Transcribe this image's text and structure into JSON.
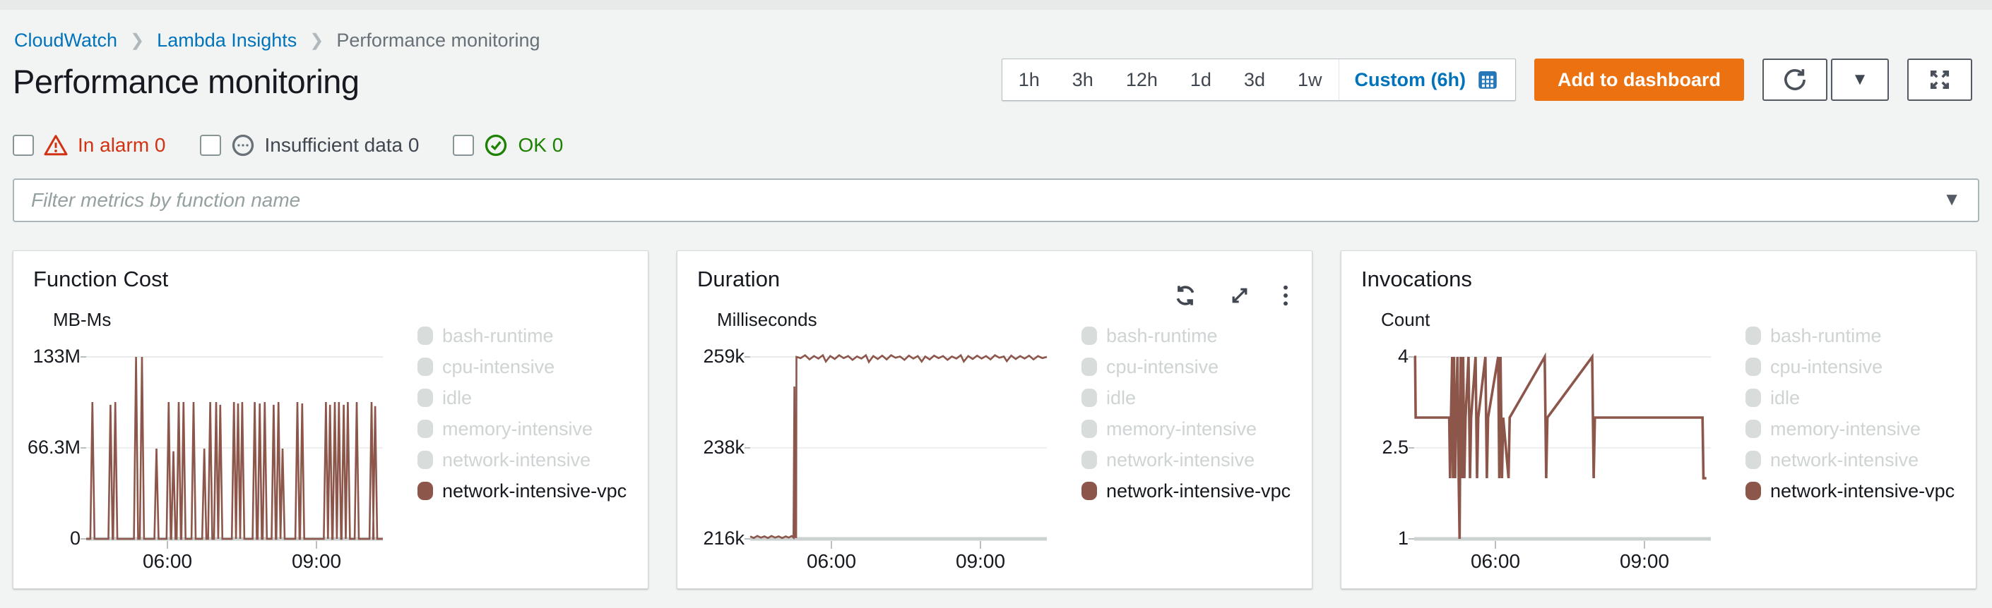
{
  "breadcrumb": {
    "items": [
      {
        "label": "CloudWatch"
      },
      {
        "label": "Lambda Insights"
      },
      {
        "label": "Performance monitoring"
      }
    ]
  },
  "page": {
    "title": "Performance monitoring"
  },
  "time_controls": {
    "ranges": [
      "1h",
      "3h",
      "12h",
      "1d",
      "3d",
      "1w"
    ],
    "custom_label": "Custom (6h)",
    "add_to_dashboard": "Add to dashboard",
    "icons": [
      "calendar-icon",
      "refresh-icon",
      "caret-down-icon",
      "fullscreen-icon"
    ]
  },
  "alarm_filters": {
    "in_alarm": "In alarm 0",
    "insufficient": "Insufficient data 0",
    "ok": "OK 0"
  },
  "filter": {
    "placeholder": "Filter metrics by function name"
  },
  "legend": {
    "position": "right",
    "items": [
      {
        "label": "bash-runtime",
        "active": false
      },
      {
        "label": "cpu-intensive",
        "active": false
      },
      {
        "label": "idle",
        "active": false
      },
      {
        "label": "memory-intensive",
        "active": false
      },
      {
        "label": "network-intensive",
        "active": false
      },
      {
        "label": "network-intensive-vpc",
        "active": true
      }
    ]
  },
  "colors": {
    "link_blue": "#0073bb",
    "alarm_red": "#d13212",
    "ok_green": "#1d8102",
    "accent_orange": "#ec7211",
    "series_brown": "#8c564b",
    "inactive_legend": "#d8dcdb",
    "page_bg": "#f2f3f3"
  },
  "chart_data": [
    {
      "type": "line",
      "title": "Function Cost",
      "unit": "MB-Ms",
      "yticks": [
        "133M",
        "66.3M",
        "0"
      ],
      "xticks": [
        "06:00",
        "09:00"
      ],
      "ylim": [
        0,
        133
      ],
      "grid": true,
      "legend_position": "right",
      "series": [
        {
          "name": "network-intensive-vpc",
          "color": "#8c564b",
          "baseline": 0,
          "half_width": 0.007,
          "spikes": [
            [
              0.021,
              100
            ],
            [
              0.082,
              98
            ],
            [
              0.098,
              100
            ],
            [
              0.168,
              133
            ],
            [
              0.188,
              133
            ],
            [
              0.237,
              66
            ],
            [
              0.278,
              100
            ],
            [
              0.294,
              64
            ],
            [
              0.312,
              100
            ],
            [
              0.328,
              100
            ],
            [
              0.362,
              100
            ],
            [
              0.398,
              66
            ],
            [
              0.418,
              100
            ],
            [
              0.438,
              100
            ],
            [
              0.452,
              98
            ],
            [
              0.498,
              100
            ],
            [
              0.512,
              99
            ],
            [
              0.526,
              100
            ],
            [
              0.568,
              100
            ],
            [
              0.585,
              99
            ],
            [
              0.602,
              100
            ],
            [
              0.632,
              98
            ],
            [
              0.648,
              100
            ],
            [
              0.662,
              66
            ],
            [
              0.712,
              100
            ],
            [
              0.728,
              99
            ],
            [
              0.808,
              100
            ],
            [
              0.822,
              98
            ],
            [
              0.838,
              100
            ],
            [
              0.852,
              100
            ],
            [
              0.868,
              98
            ],
            [
              0.882,
              100
            ],
            [
              0.912,
              100
            ],
            [
              0.962,
              100
            ],
            [
              0.974,
              97
            ]
          ]
        }
      ]
    },
    {
      "type": "line",
      "title": "Duration",
      "unit": "Milliseconds",
      "yticks": [
        "259k",
        "238k",
        "216k"
      ],
      "xticks": [
        "06:00",
        "09:00"
      ],
      "ylim": [
        216,
        259
      ],
      "grid": true,
      "legend_position": "right",
      "series": [
        {
          "name": "network-intensive-vpc",
          "color": "#8c564b",
          "points": [
            [
              0,
              216.6
            ],
            [
              0.012,
              216.2
            ],
            [
              0.024,
              216.7
            ],
            [
              0.036,
              216.3
            ],
            [
              0.048,
              216.6
            ],
            [
              0.06,
              216.2
            ],
            [
              0.072,
              216.7
            ],
            [
              0.084,
              216.3
            ],
            [
              0.096,
              216.6
            ],
            [
              0.108,
              216.2
            ],
            [
              0.12,
              216.6
            ],
            [
              0.13,
              216.3
            ],
            [
              0.14,
              216.7
            ],
            [
              0.146,
              216.3
            ],
            [
              0.149,
              252
            ],
            [
              0.151,
              216.4
            ],
            [
              0.155,
              216.4
            ],
            [
              0.156,
              259
            ],
            [
              0.17,
              258.7
            ],
            [
              0.185,
              259.4
            ],
            [
              0.2,
              258.4
            ],
            [
              0.215,
              259.2
            ],
            [
              0.23,
              258.6
            ],
            [
              0.245,
              259.4
            ],
            [
              0.255,
              257.9
            ],
            [
              0.27,
              259.2
            ],
            [
              0.285,
              258.5
            ],
            [
              0.3,
              259.4
            ],
            [
              0.315,
              258.7
            ],
            [
              0.33,
              259.2
            ],
            [
              0.345,
              258.3
            ],
            [
              0.36,
              259.1
            ],
            [
              0.375,
              258.6
            ],
            [
              0.39,
              259.4
            ],
            [
              0.4,
              257.8
            ],
            [
              0.415,
              259.2
            ],
            [
              0.43,
              258.5
            ],
            [
              0.445,
              259.3
            ],
            [
              0.46,
              258.4
            ],
            [
              0.475,
              259.4
            ],
            [
              0.49,
              258.8
            ],
            [
              0.505,
              259.1
            ],
            [
              0.52,
              258.3
            ],
            [
              0.535,
              259.3
            ],
            [
              0.55,
              258.6
            ],
            [
              0.565,
              259.2
            ],
            [
              0.578,
              257.9
            ],
            [
              0.59,
              259.1
            ],
            [
              0.605,
              258.4
            ],
            [
              0.62,
              259.3
            ],
            [
              0.635,
              258.7
            ],
            [
              0.65,
              259.2
            ],
            [
              0.665,
              258.3
            ],
            [
              0.68,
              259.1
            ],
            [
              0.695,
              258.6
            ],
            [
              0.71,
              259.4
            ],
            [
              0.72,
              257.9
            ],
            [
              0.735,
              259.2
            ],
            [
              0.75,
              258.5
            ],
            [
              0.765,
              259.3
            ],
            [
              0.78,
              258.6
            ],
            [
              0.795,
              259.2
            ],
            [
              0.81,
              258.4
            ],
            [
              0.825,
              259.4
            ],
            [
              0.84,
              258.8
            ],
            [
              0.855,
              259.1
            ],
            [
              0.865,
              258.0
            ],
            [
              0.88,
              259.3
            ],
            [
              0.895,
              258.5
            ],
            [
              0.91,
              259.2
            ],
            [
              0.925,
              258.6
            ],
            [
              0.94,
              259.3
            ],
            [
              0.955,
              258.4
            ],
            [
              0.97,
              259.2
            ],
            [
              0.985,
              258.7
            ],
            [
              1,
              259.0
            ]
          ]
        }
      ]
    },
    {
      "type": "line",
      "title": "Invocations",
      "unit": "Count",
      "yticks": [
        "4",
        "2.5",
        "1"
      ],
      "xticks": [
        "06:00",
        "09:00"
      ],
      "ylim": [
        1,
        4
      ],
      "grid": true,
      "legend_position": "right",
      "series": [
        {
          "name": "network-intensive-vpc",
          "color": "#8c564b",
          "points": [
            [
              0,
              4
            ],
            [
              0.003,
              4
            ],
            [
              0.005,
              3
            ],
            [
              0.118,
              3
            ],
            [
              0.121,
              2
            ],
            [
              0.124,
              3
            ],
            [
              0.128,
              4
            ],
            [
              0.131,
              2
            ],
            [
              0.134,
              4
            ],
            [
              0.138,
              2
            ],
            [
              0.141,
              3
            ],
            [
              0.146,
              4
            ],
            [
              0.15,
              2
            ],
            [
              0.153,
              1
            ],
            [
              0.157,
              4
            ],
            [
              0.161,
              2
            ],
            [
              0.165,
              4
            ],
            [
              0.169,
              2
            ],
            [
              0.173,
              3
            ],
            [
              0.183,
              4
            ],
            [
              0.188,
              2
            ],
            [
              0.192,
              3
            ],
            [
              0.207,
              4
            ],
            [
              0.212,
              2
            ],
            [
              0.216,
              3
            ],
            [
              0.24,
              4
            ],
            [
              0.245,
              2
            ],
            [
              0.249,
              3
            ],
            [
              0.283,
              4
            ],
            [
              0.287,
              2
            ],
            [
              0.291,
              4
            ],
            [
              0.296,
              2
            ],
            [
              0.3,
              3
            ],
            [
              0.318,
              2
            ],
            [
              0.322,
              3
            ],
            [
              0.44,
              4
            ],
            [
              0.445,
              2
            ],
            [
              0.449,
              3
            ],
            [
              0.6,
              4
            ],
            [
              0.605,
              2
            ],
            [
              0.609,
              3
            ],
            [
              0.972,
              3
            ],
            [
              0.975,
              2
            ],
            [
              0.985,
              2
            ]
          ]
        }
      ]
    }
  ]
}
